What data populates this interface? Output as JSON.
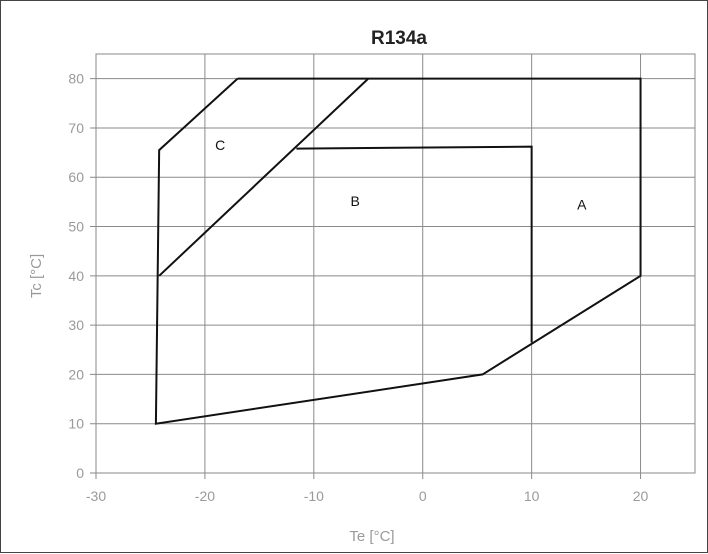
{
  "chart_data": {
    "type": "line",
    "title": "R134a",
    "xlabel": "Te [°C]",
    "ylabel": "Tc [°C]",
    "xlim": [
      -30,
      25
    ],
    "ylim": [
      0,
      85
    ],
    "x_ticks": [
      -30,
      -20,
      -10,
      0,
      10,
      20
    ],
    "y_ticks": [
      0,
      10,
      20,
      30,
      40,
      50,
      60,
      70,
      80
    ],
    "x_tick_labels": [
      "-30",
      "-20",
      "-10",
      "0",
      "10",
      "20"
    ],
    "y_tick_labels": [
      "0",
      "10",
      "20",
      "30",
      "40",
      "50",
      "60",
      "70",
      "80"
    ],
    "grid": true,
    "series": [
      {
        "closed": true,
        "points": [
          [
            -17,
            80
          ],
          [
            20,
            80
          ],
          [
            20,
            40
          ],
          [
            5.5,
            20
          ],
          [
            -24.5,
            10
          ],
          [
            -24.2,
            65.5
          ],
          [
            -17,
            80
          ]
        ]
      },
      {
        "closed": false,
        "points": [
          [
            -24.2,
            40
          ],
          [
            -5,
            80
          ]
        ]
      },
      {
        "closed": false,
        "points": [
          [
            -11.6,
            65.8
          ],
          [
            10,
            66.2
          ],
          [
            10,
            26.5
          ]
        ]
      }
    ],
    "annotations": [
      {
        "text": "C",
        "x": -18.6,
        "y": 66.5
      },
      {
        "text": "B",
        "x": -6.2,
        "y": 55.2
      },
      {
        "text": "A",
        "x": 14.6,
        "y": 54.5
      }
    ]
  }
}
